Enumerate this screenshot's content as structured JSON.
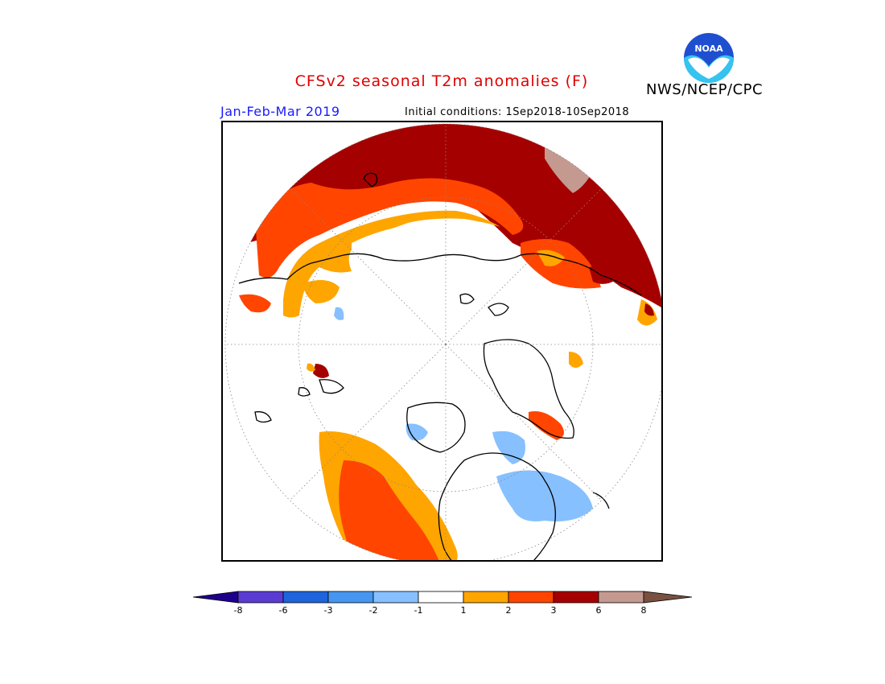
{
  "header": {
    "title": "CFSv2 seasonal T2m anomalies (F)",
    "agency": "NWS/NCEP/CPC",
    "season": "Jan-Feb-Mar 2019",
    "initial_conditions": "Initial conditions: 1Sep2018-10Sep2018",
    "logo_text": "NOAA"
  },
  "map": {
    "projection": "north polar stereographic",
    "anomaly_colors": {
      "above_6": "#a50000",
      "3_to_6": "#ff4500",
      "2_to_3": "#ff4500",
      "1_to_2": "#ffa500",
      "neutral": "#ffffff",
      "minus_1_to_2": "#87c0ff",
      "above_8": "#c49a90"
    }
  },
  "colorbar": {
    "colors": [
      "#1e008c",
      "#5a3cd2",
      "#1e64dc",
      "#4696f0",
      "#87c0ff",
      "#ffffff",
      "#ffa500",
      "#ff4500",
      "#a50000",
      "#c49a90",
      "#7a5040"
    ],
    "ticks": [
      "-8",
      "-6",
      "-3",
      "-2",
      "-1",
      "1",
      "2",
      "3",
      "6",
      "8"
    ]
  }
}
